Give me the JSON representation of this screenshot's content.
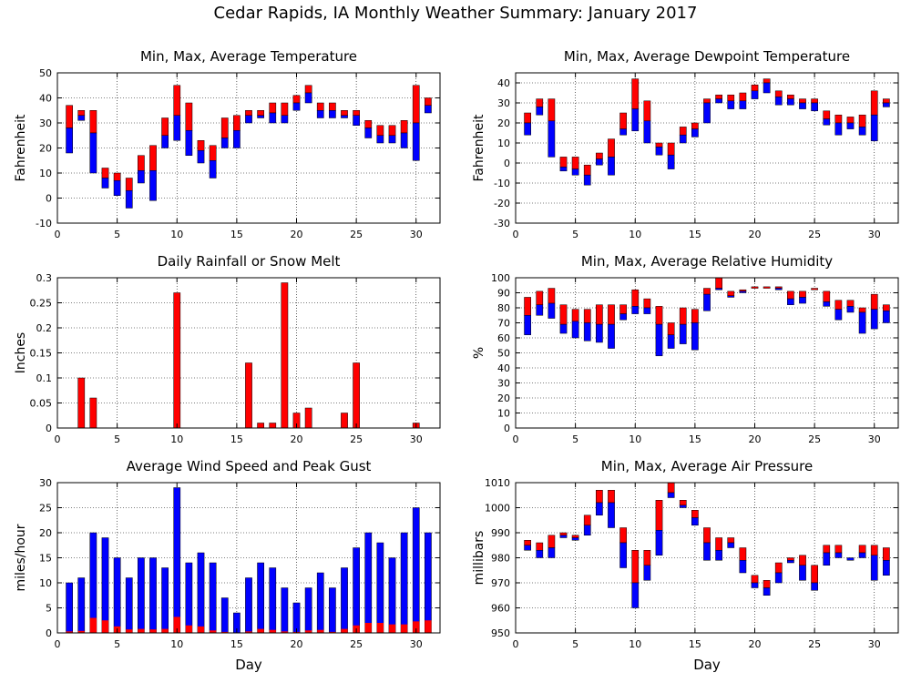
{
  "page": {
    "title": "Cedar Rapids, IA Monthly Weather Summary: January 2017"
  },
  "colors": {
    "series_a": "#ff0000",
    "series_b": "#0000ff",
    "frame": "#000000"
  },
  "chart_data": [
    {
      "id": "temperature",
      "type": "bar",
      "title": "Min, Max, Average Temperature",
      "ylabel": "Fahrenheit",
      "xlabel": "",
      "xlim": [
        0,
        32
      ],
      "ylim": [
        -10,
        50
      ],
      "xticks": [
        0,
        5,
        10,
        15,
        20,
        25,
        30
      ],
      "yticks": [
        -10,
        0,
        10,
        20,
        30,
        40,
        50
      ],
      "ytick_labels": [
        "-10",
        "0",
        "10",
        "20",
        "30",
        "40",
        "50"
      ],
      "grid": true,
      "style": "range",
      "days": [
        1,
        2,
        3,
        4,
        5,
        6,
        7,
        8,
        9,
        10,
        11,
        12,
        13,
        14,
        15,
        16,
        17,
        18,
        19,
        20,
        21,
        22,
        23,
        24,
        25,
        26,
        27,
        28,
        29,
        30,
        31
      ],
      "max": [
        37,
        35,
        35,
        12,
        10,
        8,
        17,
        21,
        32,
        45,
        38,
        23,
        21,
        32,
        33,
        35,
        35,
        38,
        38,
        41,
        45,
        38,
        38,
        35,
        35,
        31,
        29,
        29,
        31,
        45,
        40
      ],
      "avg": [
        28,
        33,
        26,
        8,
        7,
        3,
        11,
        11,
        25,
        33,
        27,
        19,
        15,
        24,
        27,
        33,
        33,
        34,
        33,
        38,
        42,
        35,
        35,
        33,
        33,
        28,
        25,
        25,
        26,
        30,
        37
      ],
      "min": [
        18,
        31,
        10,
        4,
        1,
        -4,
        6,
        -1,
        20,
        23,
        17,
        14,
        8,
        20,
        20,
        30,
        32,
        30,
        30,
        35,
        38,
        32,
        32,
        32,
        29,
        24,
        22,
        22,
        20,
        15,
        34
      ]
    },
    {
      "id": "dewpoint",
      "type": "bar",
      "title": "Min, Max, Average Dewpoint Temperature",
      "ylabel": "Fahrenheit",
      "xlabel": "",
      "xlim": [
        0,
        32
      ],
      "ylim": [
        -30,
        45
      ],
      "xticks": [
        0,
        5,
        10,
        15,
        20,
        25,
        30
      ],
      "yticks": [
        -30,
        -20,
        -10,
        0,
        10,
        20,
        30,
        40
      ],
      "ytick_labels": [
        "-30",
        "-20",
        "-10",
        "0",
        "10",
        "20",
        "30",
        "40"
      ],
      "grid": true,
      "style": "range",
      "days": [
        1,
        2,
        3,
        4,
        5,
        6,
        7,
        8,
        9,
        10,
        11,
        12,
        13,
        14,
        15,
        16,
        17,
        18,
        19,
        20,
        21,
        22,
        23,
        24,
        25,
        26,
        27,
        28,
        29,
        30,
        31
      ],
      "max": [
        25,
        32,
        32,
        3,
        3,
        -1,
        5,
        12,
        25,
        42,
        31,
        10,
        10,
        18,
        20,
        32,
        34,
        34,
        35,
        39,
        42,
        36,
        34,
        32,
        32,
        26,
        24,
        23,
        24,
        36,
        32
      ],
      "avg": [
        20,
        28,
        21,
        -2,
        -3,
        -6,
        2,
        3,
        17,
        27,
        21,
        8,
        4,
        14,
        17,
        30,
        32,
        31,
        31,
        36,
        40,
        33,
        32,
        30,
        30,
        22,
        20,
        20,
        18,
        24,
        30
      ],
      "min": [
        14,
        24,
        3,
        -4,
        -6,
        -11,
        -1,
        -6,
        14,
        16,
        10,
        4,
        -3,
        10,
        13,
        20,
        30,
        27,
        27,
        32,
        35,
        29,
        29,
        27,
        26,
        19,
        14,
        17,
        14,
        11,
        28
      ]
    },
    {
      "id": "rainfall",
      "type": "bar",
      "title": "Daily Rainfall or Snow Melt",
      "ylabel": "Inches",
      "xlabel": "",
      "xlim": [
        0,
        32
      ],
      "ylim": [
        0,
        0.3
      ],
      "xticks": [
        0,
        5,
        10,
        15,
        20,
        25,
        30
      ],
      "yticks": [
        0,
        0.05,
        0.1,
        0.15,
        0.2,
        0.25,
        0.3
      ],
      "ytick_labels": [
        "0",
        "0.05",
        "0.1",
        "0.15",
        "0.2",
        "0.25",
        "0.3"
      ],
      "grid": true,
      "style": "simple",
      "days": [
        2,
        3,
        10,
        16,
        17,
        18,
        19,
        20,
        21,
        24,
        25,
        30
      ],
      "values": [
        0.1,
        0.06,
        0.27,
        0.13,
        0.01,
        0.01,
        0.29,
        0.03,
        0.04,
        0.03,
        0.13,
        0.01
      ]
    },
    {
      "id": "humidity",
      "type": "bar",
      "title": "Min, Max, Average Relative Humidity",
      "ylabel": "%",
      "xlabel": "",
      "xlim": [
        0,
        32
      ],
      "ylim": [
        0,
        100
      ],
      "xticks": [
        0,
        5,
        10,
        15,
        20,
        25,
        30
      ],
      "yticks": [
        0,
        10,
        20,
        30,
        40,
        50,
        60,
        70,
        80,
        90,
        100
      ],
      "ytick_labels": [
        "0",
        "10",
        "20",
        "30",
        "40",
        "50",
        "60",
        "70",
        "80",
        "90",
        "100"
      ],
      "grid": true,
      "style": "range",
      "days": [
        1,
        2,
        3,
        4,
        5,
        6,
        7,
        8,
        9,
        10,
        11,
        12,
        13,
        14,
        15,
        16,
        17,
        18,
        19,
        20,
        21,
        22,
        23,
        24,
        25,
        26,
        27,
        28,
        29,
        30,
        31
      ],
      "max": [
        87,
        91,
        93,
        82,
        79,
        79,
        82,
        82,
        82,
        92,
        86,
        81,
        70,
        80,
        79,
        93,
        100,
        91,
        92,
        94,
        94,
        94,
        91,
        91,
        93,
        91,
        85,
        85,
        80,
        89,
        82
      ],
      "avg": [
        75,
        82,
        83,
        69,
        71,
        70,
        69,
        69,
        76,
        81,
        80,
        69,
        62,
        69,
        70,
        89,
        93,
        88,
        91,
        93,
        93,
        93,
        86,
        87,
        92,
        84,
        79,
        81,
        77,
        79,
        78
      ],
      "min": [
        62,
        75,
        73,
        63,
        60,
        58,
        57,
        53,
        72,
        76,
        76,
        48,
        53,
        56,
        52,
        78,
        92,
        87,
        90,
        93,
        93,
        92,
        82,
        83,
        92,
        81,
        72,
        77,
        63,
        66,
        70
      ]
    },
    {
      "id": "wind",
      "type": "bar",
      "title": "Average Wind Speed and Peak Gust",
      "ylabel": "miles/hour",
      "xlabel": "Day",
      "xlim": [
        0,
        32
      ],
      "ylim": [
        0,
        30
      ],
      "xticks": [
        0,
        5,
        10,
        15,
        20,
        25,
        30
      ],
      "yticks": [
        0,
        5,
        10,
        15,
        20,
        25,
        30
      ],
      "ytick_labels": [
        "0",
        "5",
        "10",
        "15",
        "20",
        "25",
        "30"
      ],
      "grid": true,
      "style": "wind",
      "days": [
        1,
        2,
        3,
        4,
        5,
        6,
        7,
        8,
        9,
        10,
        11,
        12,
        13,
        14,
        15,
        16,
        17,
        18,
        19,
        20,
        21,
        22,
        23,
        24,
        25,
        26,
        27,
        28,
        29,
        30,
        31
      ],
      "gust": [
        10,
        11,
        20,
        19,
        15,
        11,
        15,
        15,
        13,
        29,
        14,
        16,
        14,
        7,
        4,
        11,
        14,
        13,
        9,
        6,
        9,
        12,
        9,
        13,
        17,
        20,
        18,
        15,
        20,
        25,
        20
      ],
      "avg": [
        0.3,
        0.4,
        3.0,
        2.5,
        1.3,
        0.7,
        0.8,
        0.7,
        0.8,
        3.2,
        1.5,
        1.3,
        0.5,
        0.2,
        0.1,
        0.3,
        0.8,
        0.6,
        0.3,
        0.2,
        0.5,
        0.6,
        0.2,
        0.8,
        1.5,
        2.0,
        2.0,
        1.7,
        1.7,
        2.3,
        2.5
      ]
    },
    {
      "id": "pressure",
      "type": "bar",
      "title": "Min, Max, Average Air Pressure",
      "ylabel": "millibars",
      "xlabel": "Day",
      "xlim": [
        0,
        32
      ],
      "ylim": [
        950,
        1010
      ],
      "xticks": [
        0,
        5,
        10,
        15,
        20,
        25,
        30
      ],
      "yticks": [
        950,
        960,
        970,
        980,
        990,
        1000,
        1010
      ],
      "ytick_labels": [
        "950",
        "960",
        "970",
        "980",
        "990",
        "1000",
        "1010"
      ],
      "grid": true,
      "style": "range",
      "days": [
        1,
        2,
        3,
        4,
        5,
        6,
        7,
        8,
        9,
        10,
        11,
        12,
        13,
        14,
        15,
        16,
        17,
        18,
        19,
        20,
        21,
        22,
        23,
        24,
        25,
        26,
        27,
        28,
        29,
        30,
        31
      ],
      "max": [
        987,
        986,
        989,
        990,
        989,
        997,
        1007,
        1007,
        992,
        983,
        983,
        1003,
        1010,
        1003,
        999,
        992,
        988,
        988,
        984,
        973,
        971,
        978,
        980,
        981,
        977,
        985,
        985,
        980,
        985,
        985,
        984
      ],
      "avg": [
        985,
        983,
        984,
        989,
        988,
        993,
        1002,
        1002,
        986,
        970,
        977,
        991,
        1006,
        1001,
        996,
        986,
        983,
        986,
        979,
        970,
        968,
        974,
        979,
        977,
        970,
        982,
        982,
        980,
        982,
        981,
        979
      ],
      "min": [
        983,
        980,
        980,
        988,
        987,
        989,
        997,
        992,
        976,
        960,
        971,
        981,
        1004,
        1000,
        993,
        979,
        979,
        984,
        974,
        968,
        965,
        970,
        978,
        971,
        967,
        977,
        980,
        979,
        980,
        971,
        973
      ]
    }
  ]
}
